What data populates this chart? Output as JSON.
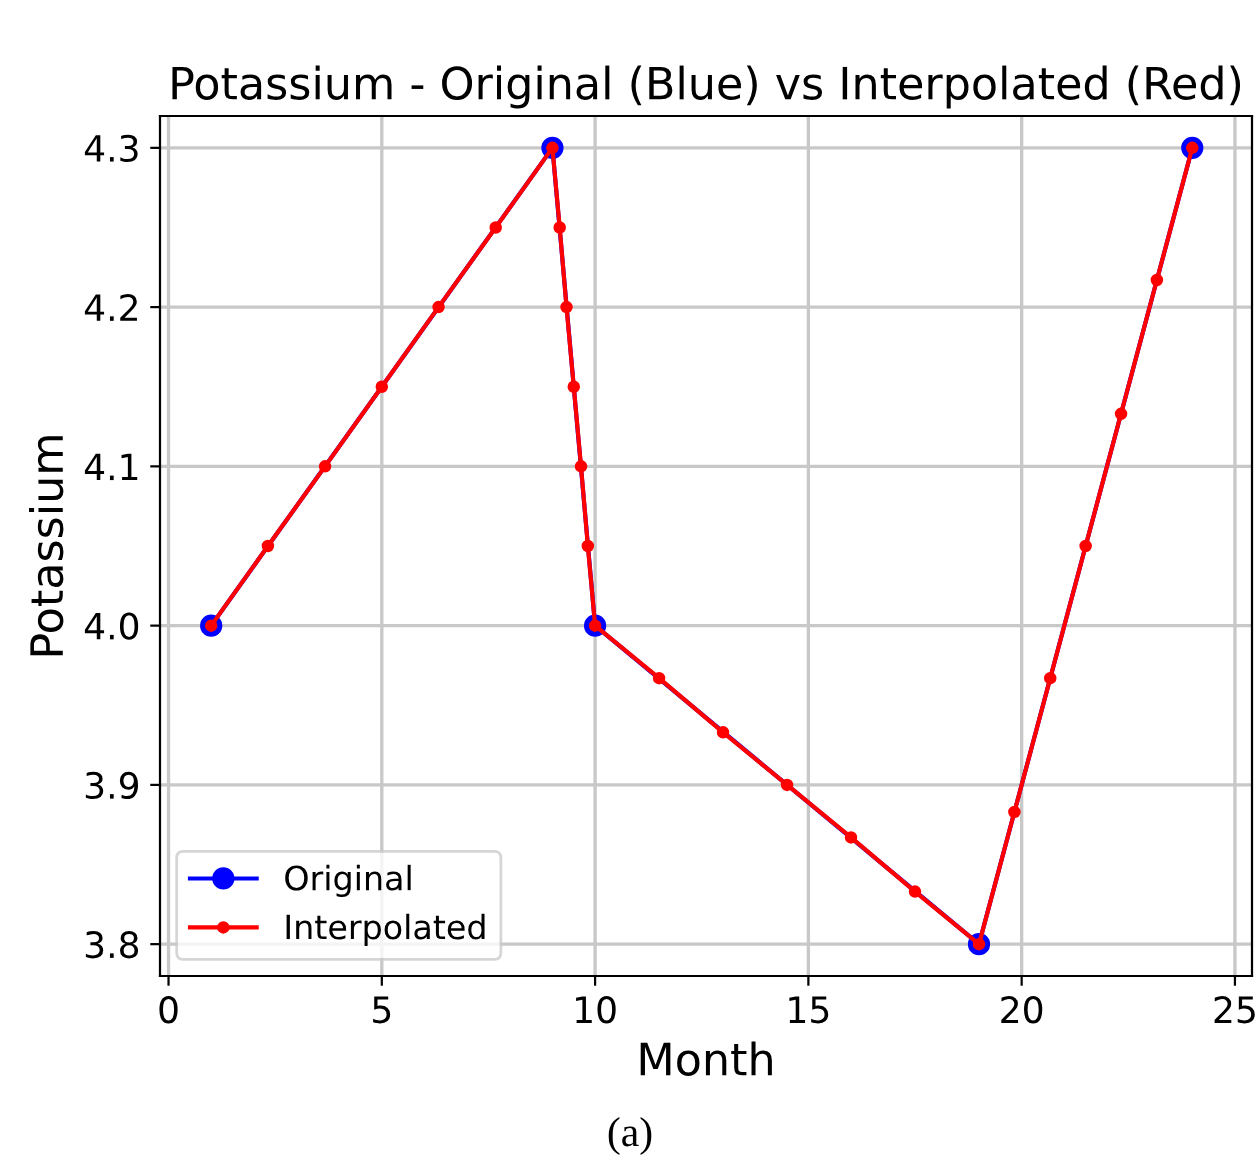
{
  "chart_data": {
    "type": "line",
    "title": "Potassium - Original (Blue) vs Interpolated (Red)",
    "xlabel": "Month",
    "ylabel": "Potassium",
    "xlim": [
      -0.2,
      25.4
    ],
    "xticks": [
      0,
      5,
      10,
      15,
      20,
      25
    ],
    "ylim": [
      3.78,
      4.32
    ],
    "yticks": [
      {
        "value": 3.8,
        "label": "3.8"
      },
      {
        "value": 3.9,
        "label": "3.9"
      },
      {
        "value": 4.0,
        "label": "4.0"
      },
      {
        "value": 4.1,
        "label": "4.1"
      },
      {
        "value": 4.2,
        "label": "4.2"
      },
      {
        "value": 4.3,
        "label": "4.3"
      }
    ],
    "grid": true,
    "legend": "bottom left",
    "annotations": [
      "(a)"
    ],
    "series": [
      {
        "name": "Original",
        "color": "#0000ff",
        "marker": "circle",
        "x": [
          1,
          9,
          10,
          19,
          24
        ],
        "values": [
          4.0,
          4.3,
          4.0,
          3.8,
          4.3
        ]
      },
      {
        "name": "Interpolated",
        "color": "#ff0000",
        "marker": "circle",
        "x": [
          1,
          2.33,
          3.67,
          5,
          6.33,
          7.67,
          9,
          9.17,
          9.33,
          9.5,
          9.67,
          9.83,
          10,
          11.5,
          13,
          14.5,
          16,
          17.5,
          19,
          19.83,
          20.67,
          21.5,
          22.33,
          23.17,
          24
        ],
        "values": [
          4.0,
          4.05,
          4.1,
          4.15,
          4.2,
          4.25,
          4.3,
          4.25,
          4.2,
          4.15,
          4.1,
          4.05,
          4.0,
          3.967,
          3.933,
          3.9,
          3.867,
          3.833,
          3.8,
          3.883,
          3.967,
          4.05,
          4.133,
          4.217,
          4.3
        ]
      }
    ]
  }
}
